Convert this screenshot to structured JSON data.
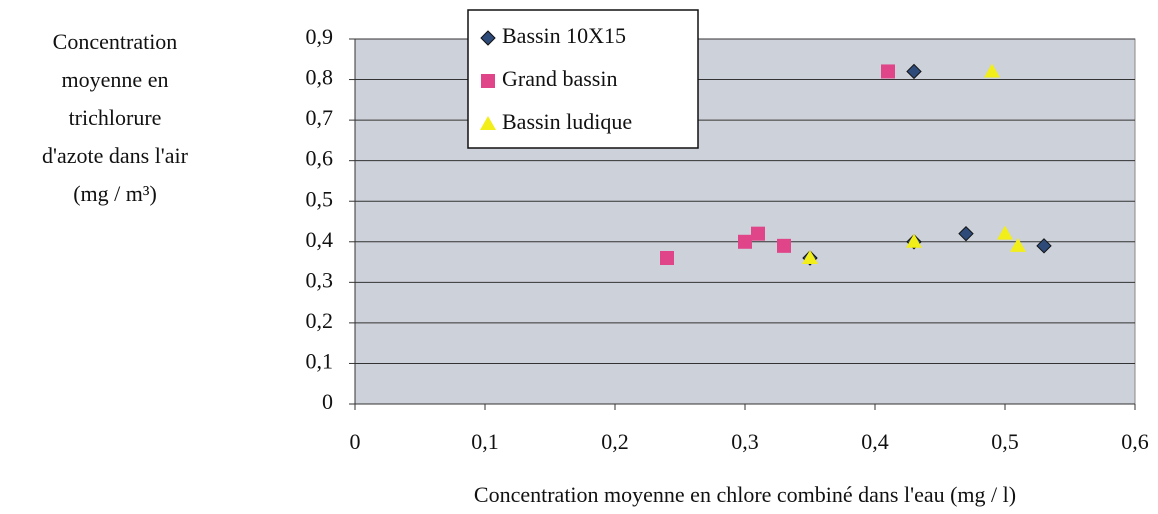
{
  "chart_data": {
    "type": "scatter",
    "ylabel": [
      "Concentration",
      "moyenne en",
      "trichlorure",
      "d'azote dans l'air",
      "(mg / m³)"
    ],
    "xlabel": "Concentration moyenne en chlore combiné dans l'eau (mg / l)",
    "xlim": [
      0,
      0.6
    ],
    "xticks": [
      0,
      {
        "value": 0.1,
        "label": "0,1"
      },
      {
        "value": 0.2,
        "label": "0,2"
      },
      {
        "value": 0.3,
        "label": "0,3"
      },
      {
        "value": 0.4,
        "label": "0,4"
      },
      {
        "value": 0.5,
        "label": "0,5"
      },
      {
        "value": 0.6,
        "label": "0,6"
      }
    ],
    "ylim": [
      0,
      0.9
    ],
    "yticks": [
      0,
      {
        "value": 0.1,
        "label": "0,1"
      },
      {
        "value": 0.2,
        "label": "0,2"
      },
      {
        "value": 0.3,
        "label": "0,3"
      },
      {
        "value": 0.4,
        "label": "0,4"
      },
      {
        "value": 0.5,
        "label": "0,5"
      },
      {
        "value": 0.6,
        "label": "0,6"
      },
      {
        "value": 0.7,
        "label": "0,7"
      },
      {
        "value": 0.8,
        "label": "0,8"
      },
      {
        "value": 0.9,
        "label": "0,9"
      }
    ],
    "grid": true,
    "legend": "upper left",
    "series": [
      {
        "name": "Bassin 10X15",
        "marker": "diamond",
        "color": "#2e4a78",
        "x": [
          0.43,
          0.47,
          0.53,
          0.35,
          0.43
        ],
        "values": [
          0.82,
          0.42,
          0.39,
          0.36,
          0.4
        ]
      },
      {
        "name": "Grand bassin",
        "marker": "square",
        "color": "#e0458a",
        "x": [
          0.41,
          0.24,
          0.3,
          0.31,
          0.33
        ],
        "values": [
          0.82,
          0.36,
          0.4,
          0.42,
          0.39
        ]
      },
      {
        "name": "Bassin ludique",
        "marker": "triangle",
        "color": "#f2ee1a",
        "x": [
          0.49,
          0.35,
          0.43,
          0.5,
          0.51
        ],
        "values": [
          0.82,
          0.36,
          0.4,
          0.42,
          0.39
        ]
      }
    ]
  }
}
